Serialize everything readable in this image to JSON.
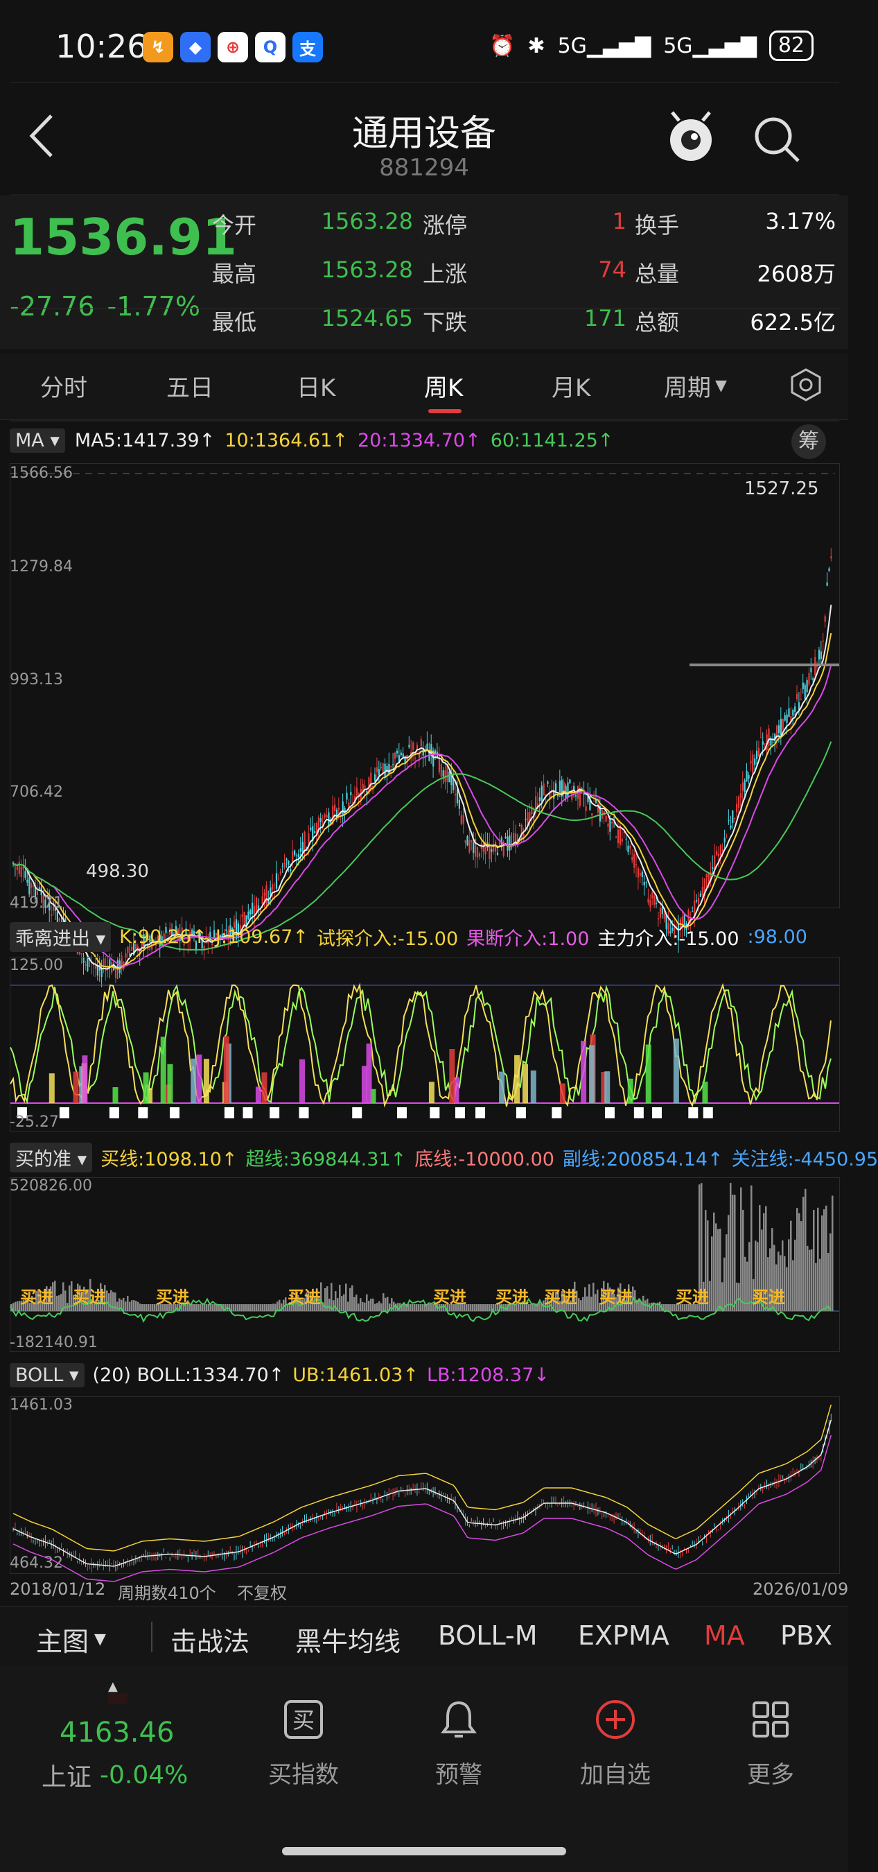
{
  "status": {
    "time": "10:26",
    "battery": "82",
    "network": "5G"
  },
  "header": {
    "title": "通用设备",
    "code": "881294",
    "back_icon": "chevron-left-icon",
    "mascot_icon": "eye-mascot-icon",
    "search_icon": "search-icon"
  },
  "quote": {
    "price": "1536.91",
    "change": "-27.76",
    "change_pct": "-1.77%",
    "rows": [
      {
        "l1": "今开",
        "v1": "1563.28",
        "l2": "涨停",
        "v2": "1",
        "l3": "换手",
        "v3": "3.17%"
      },
      {
        "l1": "最高",
        "v1": "1563.28",
        "l2": "上涨",
        "v2": "74",
        "l3": "总量",
        "v3": "2608万"
      },
      {
        "l1": "最低",
        "v1": "1524.65",
        "l2": "下跌",
        "v2": "171",
        "l3": "总额",
        "v3": "622.5亿"
      }
    ]
  },
  "tabs": [
    "分时",
    "五日",
    "日K",
    "周K",
    "月K",
    "周期"
  ],
  "active_tab": "周K",
  "ma_bar": {
    "name": "MA",
    "ma5": "MA5:1417.39↑",
    "ma10": "10:1364.61↑",
    "ma20": "20:1334.70↑",
    "ma60": "60:1141.25↑",
    "chip": "筹"
  },
  "main_axis": {
    "top": "1566.56",
    "l1": "1279.84",
    "l2": "993.13",
    "l3": "706.42",
    "bottom": "419.71",
    "high_label": "1527.25",
    "low_label": "498.30"
  },
  "ind1": {
    "name": "乖离进出",
    "k": "K:90.26↑",
    "j": "J:109.67↑",
    "test": "试探介入:-15.00",
    "decisive": "果断介入:1.00",
    "main": "主力介入:-15.00",
    "extra": ":98.00",
    "top": "125.00",
    "bottom": "-25.27"
  },
  "ind2": {
    "name": "买的准",
    "buy": "买线:1098.10↑",
    "super": "超线:369844.31↑",
    "bottom_line": "底线:-10000.00",
    "sub": "副线:200854.14↑",
    "focus": "关注线:-4450.95",
    "top": "520826.00",
    "bottom": "-182140.91"
  },
  "boll": {
    "name": "BOLL",
    "label": "(20) BOLL:1334.70↑",
    "ub": "UB:1461.03↑",
    "lb": "LB:1208.37↓",
    "top": "1461.03",
    "bottom": "464.32"
  },
  "date_axis": {
    "start": "2018/01/12",
    "count": "周期数410个",
    "adjust": "不复权",
    "end": "2026/01/09"
  },
  "bottom_tabs": [
    "主图",
    "击战法",
    "黑牛均线",
    "BOLL-M",
    "EXPMA",
    "MA",
    "PBX"
  ],
  "footer": {
    "index_value": "4163.46",
    "index_name": "上证",
    "index_change": "-0.04%",
    "items": [
      {
        "label": "买指数",
        "icon": "buy-icon"
      },
      {
        "label": "预警",
        "icon": "bell-icon"
      },
      {
        "label": "加自选",
        "icon": "add-circle-icon"
      },
      {
        "label": "更多",
        "icon": "grid-icon"
      }
    ]
  },
  "colors": {
    "up": "#e23c3c",
    "down": "#3fbf4f",
    "accent": "#e23c3c"
  }
}
